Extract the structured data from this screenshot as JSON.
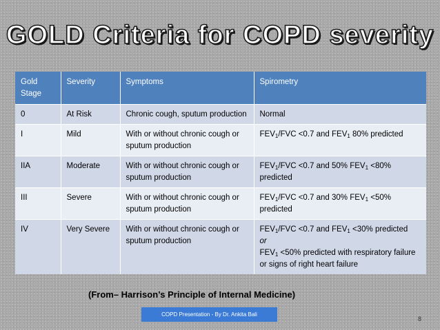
{
  "title": "GOLD Criteria for COPD severity",
  "table": {
    "headers": [
      "Gold Stage",
      "Severity",
      "Symptoms",
      "Spirometry"
    ],
    "rows": [
      {
        "stage": "0",
        "severity": "At Risk",
        "symptoms": "Chronic cough, sputum production",
        "spirometry": "Normal"
      },
      {
        "stage": "I",
        "severity": "Mild",
        "symptoms": "With or without chronic cough or sputum production",
        "spirometry": "FEV1/FVC <0.7 and FEV1 80% predicted"
      },
      {
        "stage": "IIA",
        "severity": "Moderate",
        "symptoms": "With or without chronic cough or sputum production",
        "spirometry": "FEV1/FVC <0.7 and 50% FEV1 <80% predicted"
      },
      {
        "stage": "III",
        "severity": "Severe",
        "symptoms": "With or without chronic cough or sputum production",
        "spirometry": "FEV1/FVC <0.7 and 30% FEV1 <50% predicted"
      },
      {
        "stage": "IV",
        "severity": "Very Severe",
        "symptoms": "With or without chronic cough or sputum production",
        "spirometry": "FEV1/FVC <0.7 and FEV1 <30% predicted or FEV1 <50% predicted with respiratory failure or signs of right heart failure"
      }
    ]
  },
  "source": "(From– Harrison’s Principle of Internal Medicine)",
  "footer": "COPD Presentation - By Dr. Ankita Bali",
  "page_number": "8",
  "colors": {
    "header": "#4f81bd",
    "row_dark": "#d0d8e8",
    "row_light": "#e9edf4",
    "footer_box": "#3b7bd6"
  }
}
